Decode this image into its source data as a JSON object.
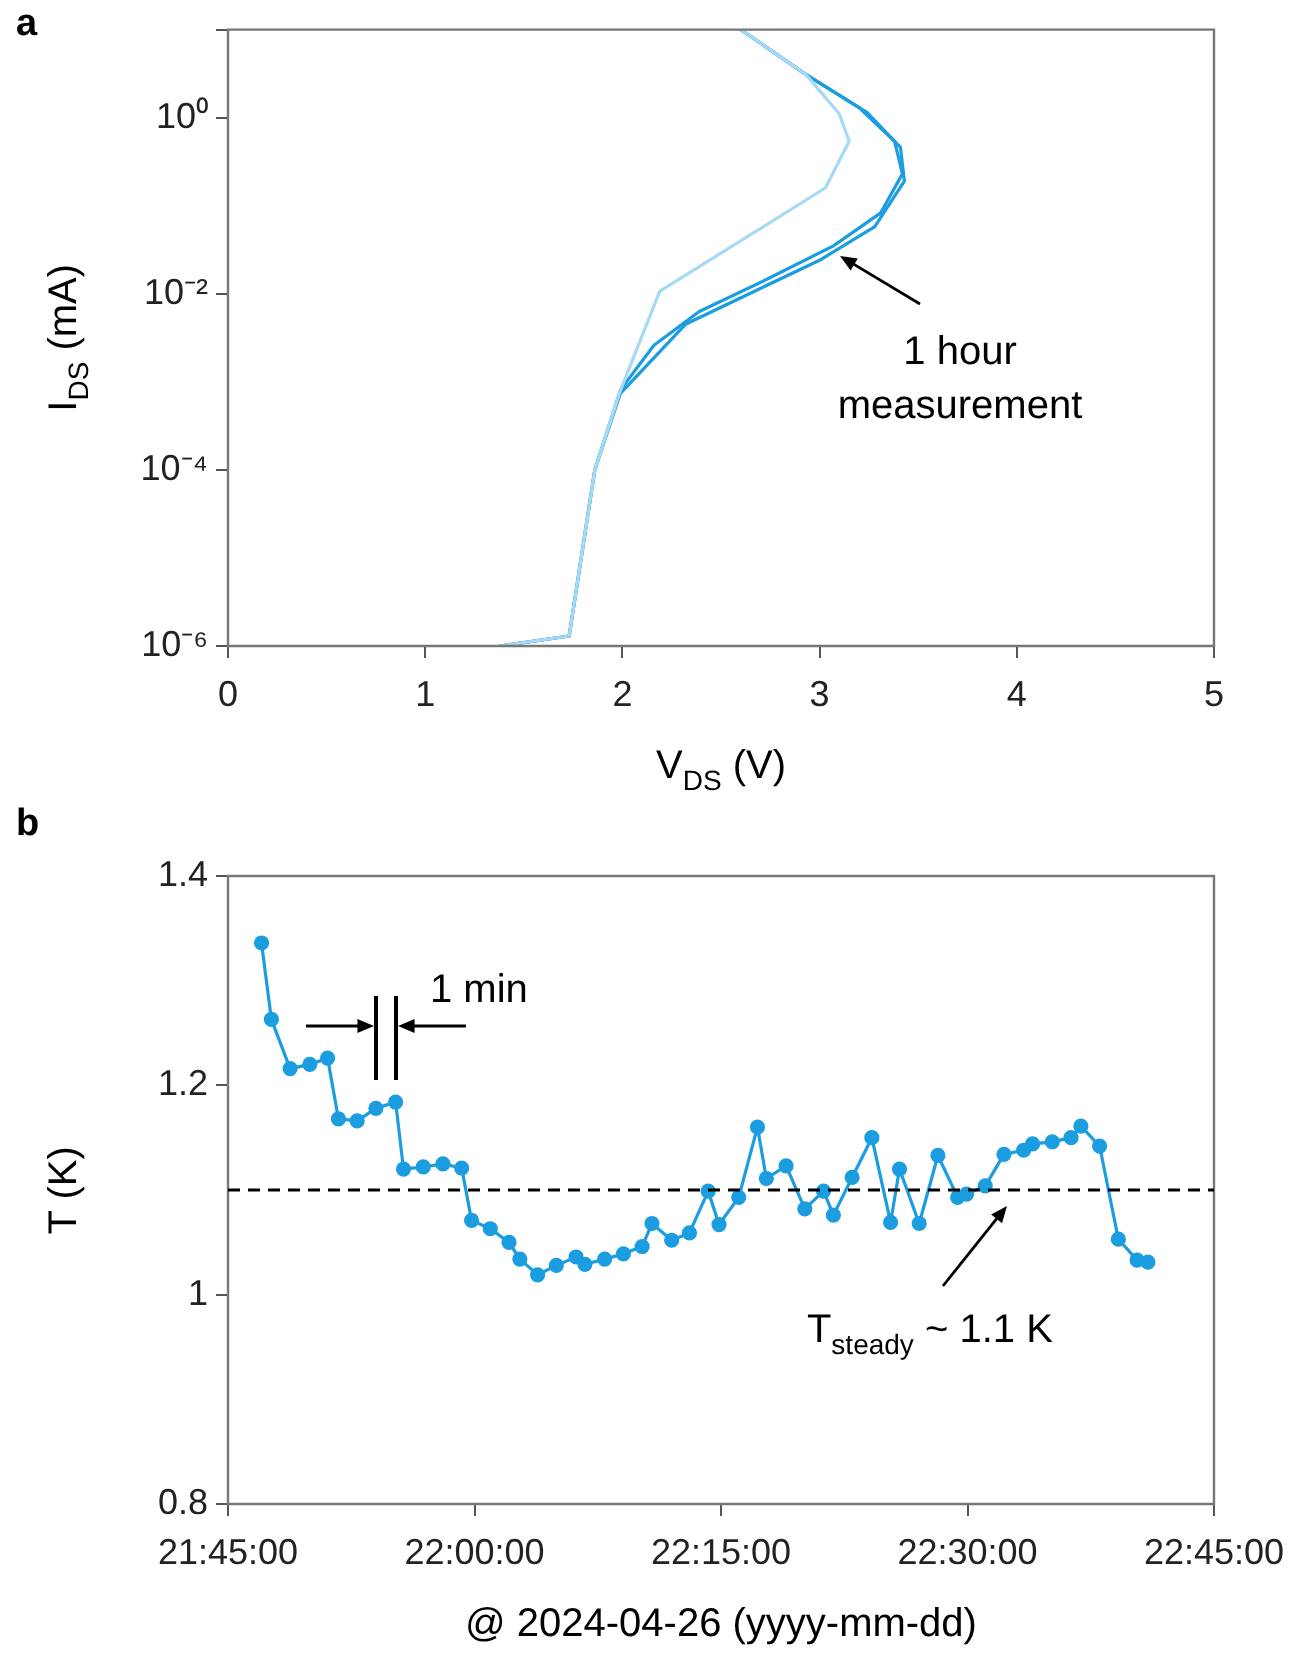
{
  "chart_data": [
    {
      "type": "line",
      "title": "a",
      "xlabel": "V$_{DS}$ (V)",
      "ylabel": "I$_{DS}$ (mA)",
      "log": "y",
      "xlim": [
        0,
        5
      ],
      "xticks": [
        0,
        1,
        2,
        3,
        4,
        5
      ],
      "ylim": [
        1e-06,
        10
      ],
      "yticks": [
        {
          "value": 1e-06,
          "label": "10⁻⁶"
        },
        {
          "value": 0.0001,
          "label": "10⁻⁴"
        },
        {
          "value": 0.01,
          "label": "10⁻²"
        },
        {
          "value": 1,
          "label": "10⁰"
        },
        {
          "value": 10,
          "label": null
        }
      ],
      "grid": false,
      "legend": false,
      "marker": "none",
      "line_style": "solid",
      "annotations": [
        "1 hour measurement"
      ],
      "series": [
        {
          "color": "#a6d9f3",
          "x": [
            1.38,
            1.73,
            1.86,
            1.99,
            2.19,
            2.67,
            3.03,
            3.15,
            3.1,
            2.93,
            2.6
          ],
          "values": [
            1e-06,
            1.3e-06,
            0.0001,
            0.0008,
            0.0107,
            0.05,
            0.16,
            0.54,
            1.1,
            3.1,
            10
          ]
        },
        {
          "color": "#1b9de0",
          "x": [
            1.38,
            1.73,
            1.86,
            1.99,
            2.16,
            2.39,
            2.73,
            3.07,
            3.31,
            3.42,
            3.38,
            3.2,
            2.93,
            2.6
          ],
          "values": [
            1e-06,
            1.3e-06,
            0.0001,
            0.00081,
            0.0026,
            0.0063,
            0.0145,
            0.035,
            0.083,
            0.23,
            0.54,
            1.3,
            3.1,
            10
          ]
        },
        {
          "color": "#1b9de0",
          "x": [
            1.38,
            1.73,
            1.86,
            1.99,
            2.32,
            2.67,
            3.0,
            3.28,
            3.43,
            3.41,
            3.24,
            2.93,
            2.6
          ],
          "values": [
            1e-06,
            1.3e-06,
            0.0001,
            0.00074,
            0.0045,
            0.0107,
            0.024,
            0.058,
            0.19,
            0.46,
            1.15,
            3.1,
            10
          ]
        }
      ]
    },
    {
      "type": "line",
      "title": "b",
      "xlabel": "@ 2024-04-26 (yyyy-mm-dd)",
      "ylabel": "T (K)",
      "xlim": [
        21.75,
        22.75
      ],
      "xticks": [
        {
          "value": 21.75,
          "label": "21:45:00"
        },
        {
          "value": 22,
          "label": "22:00:00"
        },
        {
          "value": 22.25,
          "label": "22:15:00"
        },
        {
          "value": 22.5,
          "label": "22:30:00"
        },
        {
          "value": 22.75,
          "label": "22:45:00"
        }
      ],
      "ylim": [
        0.8,
        1.4
      ],
      "yticks": [
        0.8,
        1,
        1.2,
        1.4
      ],
      "grid": false,
      "legend": false,
      "marker": "circle",
      "line_style": "solid",
      "annotations": [
        "1 min",
        {
          "text": "T$_{steady}$ ~ 1.1 K",
          "x": 22.54,
          "y": 1.1
        }
      ],
      "ref_lines": [
        {
          "axis": "y",
          "value": 1.1,
          "color": "#000000",
          "line_style": "dashed"
        }
      ],
      "series": [
        {
          "color": "#1b9de0",
          "x": [
            21.784,
            21.794,
            21.813,
            21.833,
            21.851,
            21.862,
            21.881,
            21.9,
            21.92,
            21.928,
            21.948,
            21.968,
            21.987,
            21.997,
            22.016,
            22.035,
            22.046,
            22.064,
            22.083,
            22.103,
            22.112,
            22.132,
            22.151,
            22.17,
            22.18,
            22.2,
            22.218,
            22.237,
            22.248,
            22.268,
            22.287,
            22.296,
            22.316,
            22.335,
            22.354,
            22.364,
            22.383,
            22.403,
            22.422,
            22.431,
            22.451,
            22.47,
            22.49,
            22.499,
            22.518,
            22.537,
            22.557,
            22.566,
            22.586,
            22.605,
            22.615,
            22.634,
            22.653,
            22.672,
            22.683
          ],
          "values": [
            1.336,
            1.263,
            1.216,
            1.22,
            1.226,
            1.168,
            1.166,
            1.178,
            1.184,
            1.12,
            1.122,
            1.125,
            1.121,
            1.071,
            1.063,
            1.05,
            1.034,
            1.019,
            1.028,
            1.036,
            1.029,
            1.034,
            1.039,
            1.046,
            1.068,
            1.052,
            1.059,
            1.099,
            1.067,
            1.093,
            1.16,
            1.111,
            1.123,
            1.082,
            1.099,
            1.076,
            1.112,
            1.15,
            1.069,
            1.12,
            1.068,
            1.133,
            1.093,
            1.096,
            1.104,
            1.134,
            1.138,
            1.144,
            1.146,
            1.15,
            1.161,
            1.142,
            1.053,
            1.033,
            1.031
          ]
        }
      ]
    }
  ]
}
